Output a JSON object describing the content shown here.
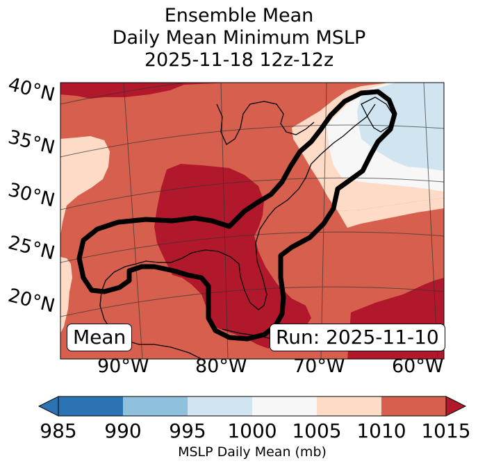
{
  "title": {
    "line1": "Ensemble Mean",
    "line2": "Daily Mean Minimum MSLP",
    "line3": "2025-11-18 12z-12z"
  },
  "map": {
    "lat_labels": [
      "40°N",
      "35°N",
      "30°N",
      "25°N",
      "20°N"
    ],
    "lon_labels": [
      "90°W",
      "80°W",
      "70°W",
      "60°W"
    ],
    "mean_badge": "Mean",
    "run_badge": "Run: 2025-11-10",
    "colors": {
      "c985": "#2c73b3",
      "c990": "#8fc1dd",
      "c995": "#d1e5f0",
      "c1000": "#f7f7f7",
      "c1005": "#fddbc7",
      "c1010": "#d6604d",
      "c1015": "#b2182b",
      "land": "#000000",
      "outline": "#000000"
    }
  },
  "colorbar": {
    "ticks": [
      "985",
      "990",
      "995",
      "1000",
      "1005",
      "1010",
      "1015"
    ],
    "label": "MSLP Daily Mean (mb)"
  }
}
